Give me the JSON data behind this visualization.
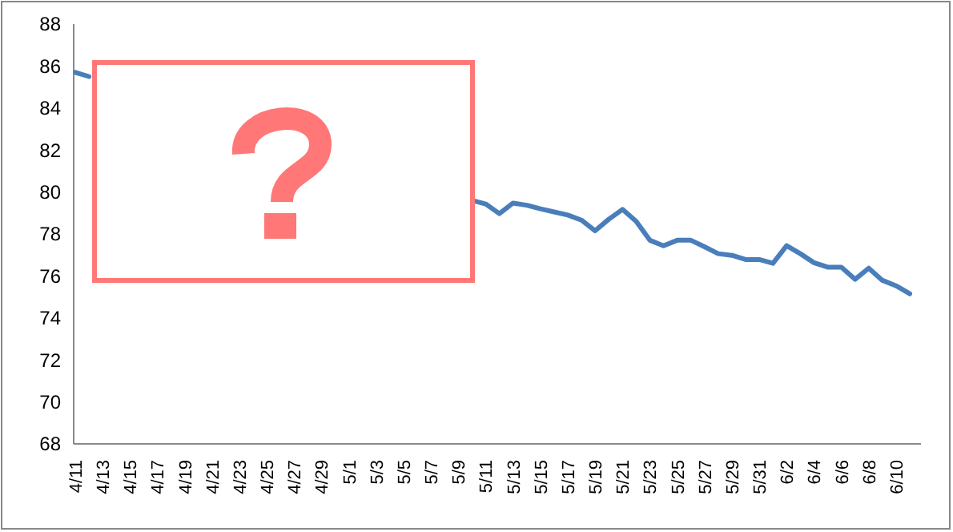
{
  "chart_data": {
    "type": "line",
    "categories": [
      "4/11",
      null,
      "4/13",
      null,
      "4/15",
      null,
      "4/17",
      null,
      "4/19",
      null,
      "4/21",
      null,
      "4/23",
      null,
      "4/25",
      null,
      "4/27",
      null,
      "4/29",
      null,
      "5/1",
      null,
      "5/3",
      null,
      "5/5",
      null,
      "5/7",
      null,
      "5/9",
      null,
      "5/11",
      null,
      "5/13",
      null,
      "5/15",
      null,
      "5/17",
      null,
      "5/19",
      null,
      "5/21",
      null,
      "5/23",
      null,
      "5/25",
      null,
      "5/27",
      null,
      "5/29",
      null,
      "5/31",
      null,
      "6/2",
      null,
      "6/4",
      null,
      "6/6",
      null,
      "6/8",
      null,
      "6/10",
      null
    ],
    "series": [
      {
        "color": "#4a7ebb",
        "values": [
          85.7,
          85.5,
          null,
          null,
          null,
          null,
          null,
          null,
          null,
          null,
          null,
          null,
          null,
          null,
          null,
          null,
          null,
          null,
          null,
          null,
          null,
          null,
          null,
          null,
          null,
          null,
          null,
          null,
          null,
          79.6,
          79.43,
          78.97,
          79.47,
          79.37,
          79.2,
          79.05,
          78.9,
          78.66,
          78.15,
          78.7,
          79.17,
          78.6,
          77.7,
          77.44,
          77.7,
          77.7,
          77.39,
          77.06,
          76.98,
          76.78,
          76.78,
          76.6,
          77.44,
          77.06,
          76.63,
          76.42,
          76.42,
          75.84,
          76.37,
          75.79,
          75.53,
          75.15
        ]
      }
    ],
    "ylim": [
      68,
      88
    ],
    "yticks": [
      68,
      70,
      72,
      74,
      76,
      78,
      80,
      82,
      84,
      86,
      88
    ],
    "grid": false,
    "marker": "none",
    "line_style": "solid"
  }
}
